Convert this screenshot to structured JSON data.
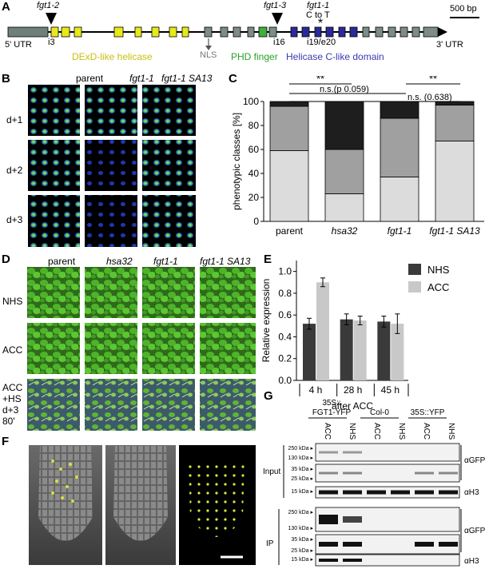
{
  "panels": {
    "A": "A",
    "B": "B",
    "C": "C",
    "D": "D",
    "E": "E",
    "F": "F",
    "G": "G"
  },
  "gene": {
    "utr5": "5' UTR",
    "utr3": "3' UTR",
    "scale": "500 bp",
    "fgt1_2": "fgt1-2",
    "fgt1_3": "fgt1-3",
    "fgt1_1": "fgt1-1",
    "c_to_t": "C to T",
    "i3": "i3",
    "i16": "i16",
    "i19e20": "i19/e20",
    "nls": "NLS",
    "helicase": "DExD-like helicase",
    "phd": "PHD finger",
    "helicase_c": "Helicase C-like domain",
    "colors": {
      "utr": "#6f7f7a",
      "helicase": "#e8e81a",
      "nls": "#7d8c87",
      "phd": "#3fae3f",
      "helicase_c": "#2a2a9a",
      "helicase_text": "#c8c010",
      "phd_text": "#2aa02a",
      "helicase_c_text": "#3a3ab0"
    }
  },
  "panelB": {
    "columns": [
      "parent",
      "fgt1-1",
      "fgt1-1 SA13"
    ],
    "rows": [
      "d+1",
      "d+2",
      "d+3"
    ]
  },
  "chart_data": {
    "type": "bar",
    "categories": [
      "parent",
      "hsa32",
      "fgt1-1",
      "fgt1-1 SA13"
    ],
    "series": [
      {
        "values": [
          59,
          23,
          37,
          67
        ]
      },
      {
        "values": [
          37,
          37,
          49,
          30
        ]
      },
      {
        "values": [
          4,
          40,
          14,
          3
        ]
      }
    ],
    "colors": [
      "#dcdcdc",
      "#a0a0a0",
      "#1e1e1e"
    ],
    "ylabel": "phenotypic classes [%]",
    "ylim": [
      0,
      100
    ],
    "yticks": [
      "0",
      "20",
      "40",
      "60",
      "80",
      "100"
    ],
    "annotations": [
      "**",
      "n.s.(p 0.059)",
      "**",
      "n.s. (0.638)"
    ]
  },
  "panelD": {
    "columns": [
      "parent",
      "hsa32",
      "fgt1-1",
      "fgt1-1 SA13"
    ],
    "rows": [
      "NHS",
      "ACC",
      "ACC\n+HS\nd+3\n80'"
    ]
  },
  "chart_e": {
    "type": "bar",
    "categories": [
      "4 h",
      "28 h",
      "45 h"
    ],
    "series": [
      {
        "name": "NHS",
        "values": [
          0.52,
          0.56,
          0.54
        ],
        "err": [
          0.05,
          0.05,
          0.05
        ]
      },
      {
        "name": "ACC",
        "values": [
          0.9,
          0.55,
          0.52
        ],
        "err": [
          0.04,
          0.04,
          0.09
        ]
      }
    ],
    "ylabel": "Relative expression",
    "xlabel": "after ACC",
    "ylim": [
      0,
      1.1
    ],
    "yticks": [
      "0.0",
      "0.2",
      "0.4",
      "0.6",
      "0.8",
      "1.0"
    ],
    "colors": [
      "#3a3a3a",
      "#c8c8c8"
    ]
  },
  "panelG": {
    "groups": [
      "35S::\nFGT1-YFP",
      "Col-0",
      "35S::YFP"
    ],
    "lanes": [
      "ACC",
      "NHS",
      "ACC",
      "NHS",
      "ACC",
      "NHS"
    ],
    "sections": [
      "Input",
      "IP"
    ],
    "markers": [
      "250 kDa",
      "130 kDa",
      "35 kDa",
      "25 kDa",
      "15 kDa"
    ],
    "antibodies": [
      "αGFP",
      "αH3"
    ]
  }
}
